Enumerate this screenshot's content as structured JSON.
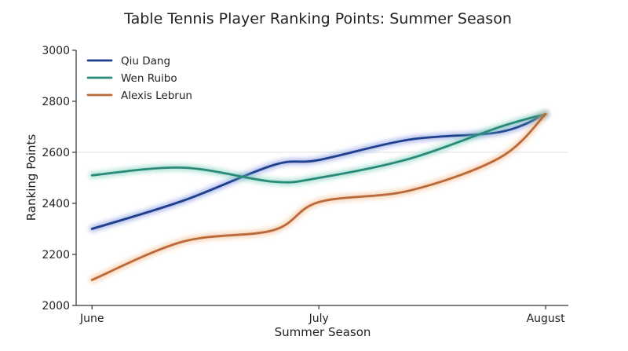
{
  "chart_data": {
    "type": "line",
    "title": "Table Tennis Player Ranking Points: Summer Season",
    "xlabel": "Summer Season",
    "ylabel": "Ranking Points",
    "x_ticks": [
      "June",
      "July",
      "August"
    ],
    "x_tick_positions": [
      0,
      1,
      2
    ],
    "xlim": [
      -0.07,
      2.1
    ],
    "y_ticks": [
      2000,
      2200,
      2400,
      2600,
      2800,
      3000
    ],
    "ylim": [
      2000,
      3000
    ],
    "grid": {
      "horizontal_at": [
        2600
      ]
    },
    "legend_position": "top-left",
    "smooth": true,
    "x": [
      0,
      0.4,
      0.8,
      1.0,
      1.4,
      1.8,
      2.0
    ],
    "series": [
      {
        "name": "Qiu Dang",
        "color": "#1f3f8c",
        "glow": "#6f86d8",
        "values": [
          2300,
          2410,
          2550,
          2570,
          2650,
          2680,
          2750
        ]
      },
      {
        "name": "Wen Ruibo",
        "color": "#2a8a78",
        "glow": "#6cc9b2",
        "values": [
          2510,
          2540,
          2485,
          2500,
          2575,
          2700,
          2750
        ]
      },
      {
        "name": "Alexis Lebrun",
        "color": "#b9693a",
        "glow": "#f0b07a",
        "values": [
          2100,
          2250,
          2295,
          2405,
          2450,
          2580,
          2750
        ]
      }
    ]
  }
}
